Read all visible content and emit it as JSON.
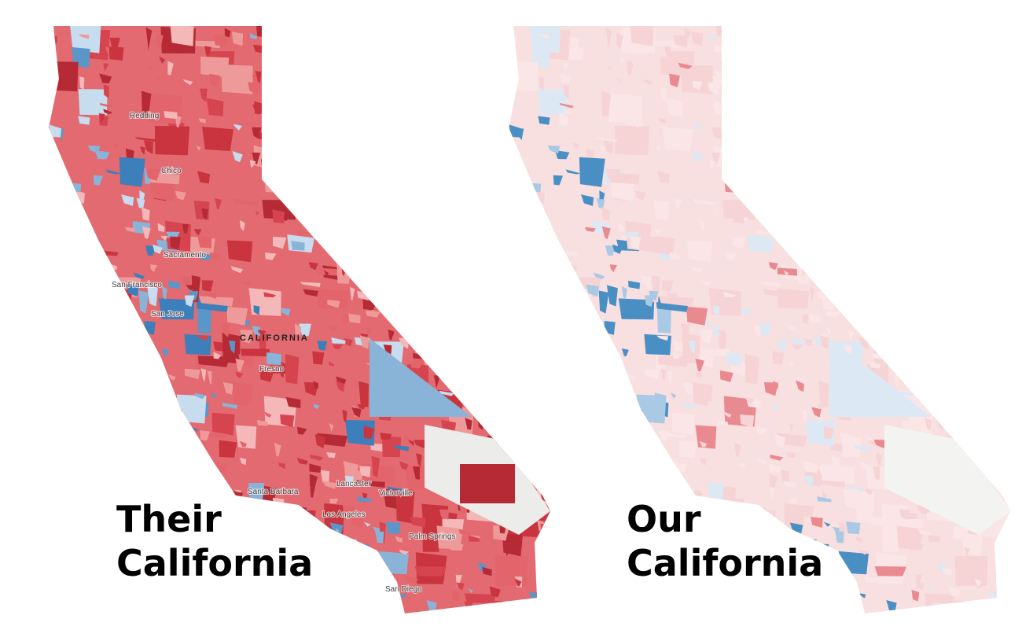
{
  "panels": [
    {
      "title": "Their California",
      "labels": [
        "Redding",
        "Chico",
        "Sacramento",
        "San Francisco",
        "San Jose",
        "CALIFORNIA",
        "Fresno",
        "Santa Barbara",
        "Lancaster",
        "Victorville",
        "Los Angeles",
        "Palm Springs",
        "San Diego"
      ]
    },
    {
      "title": "Our California"
    }
  ]
}
